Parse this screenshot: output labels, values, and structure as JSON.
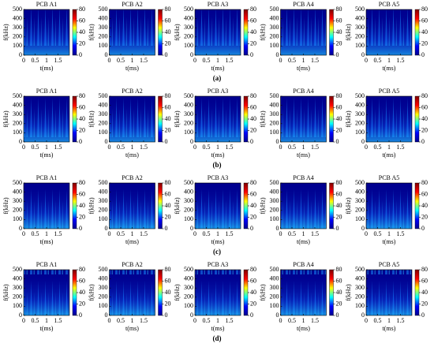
{
  "figure": {
    "row_labels": [
      "(a)",
      "(b)",
      "(c)",
      "(d)"
    ],
    "panel_titles": [
      "PCB A1",
      "PCB A2",
      "PCB A3",
      "PCB A4",
      "PCB A5"
    ],
    "xlabel": "t(ms)",
    "ylabel": "f(kHz)",
    "xlim": [
      0,
      2
    ],
    "xticks": [
      0,
      0.5,
      1,
      1.5
    ],
    "ylim": [
      0,
      500
    ],
    "yticks": [
      0,
      100,
      200,
      300,
      400,
      500
    ],
    "clim": [
      0,
      80
    ],
    "cticks": [
      0,
      20,
      40,
      60,
      80
    ],
    "colormap": [
      "#00008f",
      "#0000ff",
      "#00ffff",
      "#ffff00",
      "#ff0000",
      "#800000"
    ]
  }
}
